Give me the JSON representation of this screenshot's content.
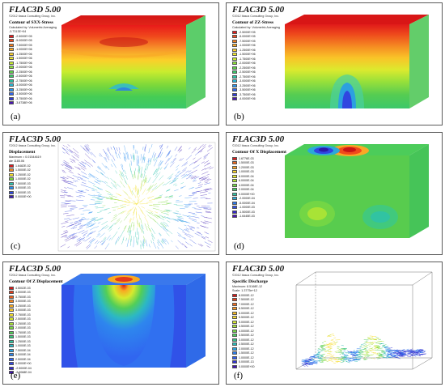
{
  "panels": [
    {
      "id": "a",
      "caption": "(a)",
      "app_title": "FLAC3D 5.00",
      "copyright": "©2012 Itasca Consulting Group, Inc.",
      "legend_title": "Contour of SXX-Stress",
      "legend_sub": [
        "Calculated by: Volumetric Averaging",
        "-3.7313E+04"
      ],
      "legend_items": [
        "-2.5000E+05",
        "-5.0000E+05",
        "-7.5000E+05",
        "-1.0000E+06",
        "-1.2500E+06",
        "-1.5000E+06",
        "-1.7500E+06",
        "-2.0000E+06",
        "-2.2500E+06",
        "-2.5000E+06",
        "-2.7500E+06",
        "-3.0000E+06",
        "-3.2500E+06",
        "-3.5000E+06",
        "-3.7500E+06",
        "-3.8738E+06"
      ],
      "legend_colors": [
        "#e81a1a",
        "#f04a1c",
        "#f57f20",
        "#f9a826",
        "#fbd02a",
        "#f0ea2e",
        "#c8ec2e",
        "#8fe23a",
        "#5fd24a",
        "#3cc86a",
        "#2ac4a4",
        "#28b8d8",
        "#2c96ee",
        "#3066f0",
        "#2e3ad8",
        "#4a14b4"
      ]
    },
    {
      "id": "b",
      "caption": "(b)",
      "app_title": "FLAC3D 5.00",
      "copyright": "©2012 Itasca Consulting Group, Inc.",
      "legend_title": "Contour of ZZ-Stress",
      "legend_sub": [
        "Calculated by: Volumetric Averaging"
      ],
      "legend_items": [
        "-2.5000E+05",
        "-5.0000E+05",
        "-7.5000E+05",
        "-1.0000E+06",
        "-1.2500E+06",
        "-1.5000E+06",
        "-1.7500E+06",
        "-2.0000E+06",
        "-2.2500E+06",
        "-2.5000E+06",
        "-2.7500E+06",
        "-3.0000E+06",
        "-3.2500E+06",
        "-3.5000E+06",
        "-3.7500E+06",
        "-4.0000E+06"
      ],
      "legend_colors": [
        "#e81a1a",
        "#f04a1c",
        "#f57f20",
        "#f9a826",
        "#fbd02a",
        "#f0ea2e",
        "#c8ec2e",
        "#8fe23a",
        "#5fd24a",
        "#3cc86a",
        "#2ac4a4",
        "#28b8d8",
        "#2c96ee",
        "#3066f0",
        "#2e3ad8",
        "#4a14b4"
      ]
    },
    {
      "id": "c",
      "caption": "(c)",
      "app_title": "FLAC3D 5.00",
      "copyright": "©2012 Itasca Consulting Group, Inc.",
      "legend_title": "Displacement",
      "legend_sub": [
        "Maximum = 0.01544619",
        "ale 1185.06"
      ],
      "legend_items": [
        "1.6482E-02",
        "1.5000E-02",
        "1.2500E-02",
        "1.0000E-02",
        "7.5000E-03",
        "5.0000E-03",
        "2.5000E-03",
        "0.0000E+00"
      ],
      "legend_colors": [
        "#d81c1c",
        "#f28a20",
        "#f4e02a",
        "#7cd83a",
        "#2ec4b0",
        "#2a8ef0",
        "#2a48e0",
        "#3c1ab0"
      ]
    },
    {
      "id": "d",
      "caption": "(d)",
      "app_title": "FLAC3D 5.00",
      "copyright": "©2012 Itasca Consulting Group, Inc.",
      "legend_title": "Contour Of X Displacement",
      "legend_sub": [],
      "legend_items": [
        "1.6776E-03",
        "1.5000E-03",
        "1.2000E-03",
        "1.0000E-03",
        "8.0000E-04",
        "6.0000E-04",
        "4.0000E-04",
        "2.0000E-04",
        "0.0000E+00",
        "-2.0000E-04",
        "-5.0000E-04",
        "-1.0000E-03",
        "-1.5000E-03",
        "-1.6445E-03"
      ],
      "legend_colors": [
        "#e01c1c",
        "#f06a1e",
        "#f7a424",
        "#fbd42a",
        "#e6ea2e",
        "#aee434",
        "#72d844",
        "#44cc6a",
        "#30c2a6",
        "#2ca8d8",
        "#2e7aee",
        "#2f4ee6",
        "#3226cc",
        "#4a14b4"
      ]
    },
    {
      "id": "e",
      "caption": "(e)",
      "app_title": "FLAC3D 5.00",
      "copyright": "©2012 Itasca Consulting Group, Inc.",
      "legend_title": "Contour Of Z Displacement",
      "legend_sub": [],
      "legend_items": [
        "4.5002E-03",
        "4.0000E-03",
        "3.7500E-03",
        "3.5000E-03",
        "3.2500E-03",
        "3.0000E-03",
        "2.7500E-03",
        "2.5000E-03",
        "2.2500E-03",
        "2.0000E-03",
        "1.7500E-03",
        "1.5000E-03",
        "1.2500E-03",
        "1.0000E-03",
        "7.5000E-04",
        "5.0000E-04",
        "2.5000E-04",
        "0.0000E+00",
        "-2.5000E-04",
        "-2.9068E-04"
      ],
      "legend_colors": [
        "#d81818",
        "#e43a1a",
        "#ee601c",
        "#f4861e",
        "#f8aa22",
        "#fbca26",
        "#f6e22a",
        "#d6ea2e",
        "#a8e236",
        "#7ad842",
        "#52ce58",
        "#38c678",
        "#2ec29e",
        "#2cb8c4",
        "#2ca4e0",
        "#2e86ee",
        "#3066f0",
        "#3046e4",
        "#3228cc",
        "#4214b4"
      ]
    },
    {
      "id": "f",
      "caption": "(f)",
      "app_title": "FLAC3D 5.00",
      "copyright": "©2012 Itasca Consulting Group, Inc.",
      "legend_title": "Specific Discharge",
      "legend_sub": [
        "Maximum: 8.5168E-12",
        "Scale: 1.3775e+12"
      ],
      "legend_items": [
        "8.0000E-12",
        "7.5000E-12",
        "7.0000E-12",
        "6.5000E-12",
        "6.0000E-12",
        "5.5000E-12",
        "5.0000E-12",
        "4.5000E-12",
        "4.0000E-12",
        "3.5000E-12",
        "3.0000E-12",
        "2.5000E-12",
        "2.0000E-12",
        "1.5000E-12",
        "1.0000E-12",
        "5.0000E-13",
        "0.0000E+00"
      ],
      "legend_colors": [
        "#d81818",
        "#e6401a",
        "#f06c1e",
        "#f69622",
        "#f9bc26",
        "#f8dc2a",
        "#d8ea2e",
        "#a6e238",
        "#76d646",
        "#4ecc60",
        "#34c488",
        "#2cbab8",
        "#2ca4e0",
        "#2e80ee",
        "#305cec",
        "#3234d4",
        "#4214b4"
      ]
    }
  ]
}
